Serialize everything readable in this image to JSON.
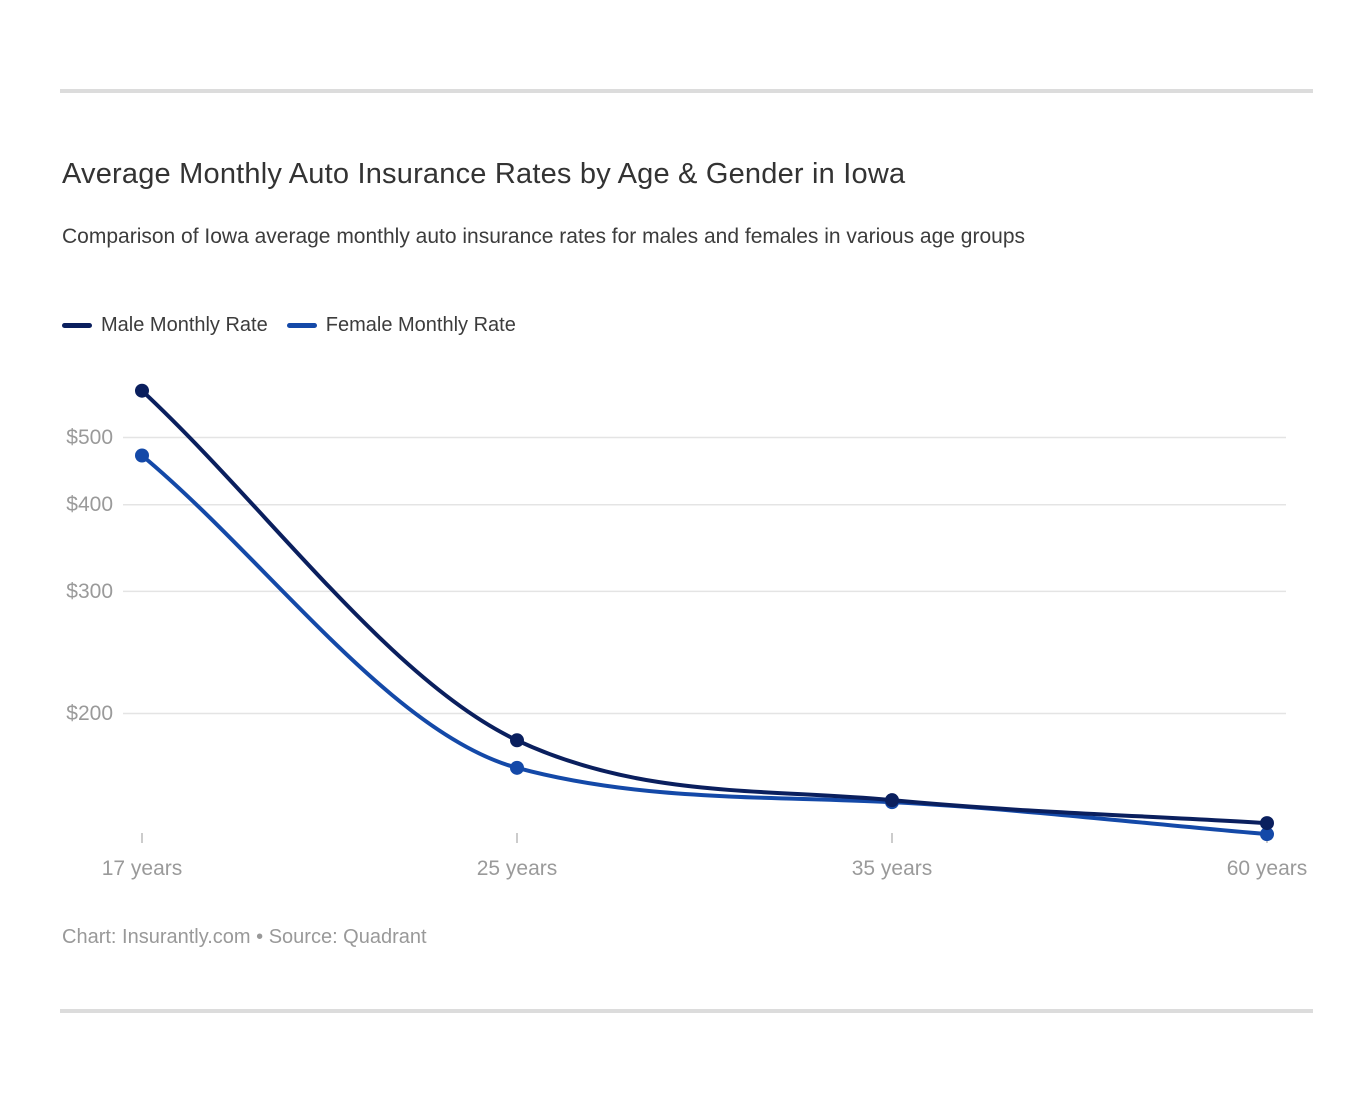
{
  "header": {
    "title": "Average Monthly Auto Insurance Rates by Age & Gender in Iowa",
    "subtitle": "Comparison of Iowa average monthly auto insurance rates for males and females in various age groups"
  },
  "footer": {
    "attribution": "Chart: Insurantly.com • Source: Quadrant"
  },
  "chart_data": {
    "type": "line",
    "title": "Average Monthly Auto Insurance Rates by Age & Gender in Iowa",
    "subtitle": "Comparison of Iowa average monthly auto insurance rates for males and females in various age groups",
    "categories": [
      "17 years",
      "25 years",
      "35 years",
      "60 years"
    ],
    "series": [
      {
        "name": "Male Monthly Rate",
        "color": "#0a1f5e",
        "values": [
          584,
          183,
          150,
          139
        ]
      },
      {
        "name": "Female Monthly Rate",
        "color": "#1449a8",
        "values": [
          471,
          167,
          149,
          134
        ]
      }
    ],
    "y_scale": "log",
    "y_ticks": [
      {
        "value": 500,
        "label": "$500"
      },
      {
        "value": 400,
        "label": "$400"
      },
      {
        "value": 300,
        "label": "$300"
      },
      {
        "value": 200,
        "label": "$200"
      }
    ],
    "xlabel": "",
    "ylabel": "",
    "legend_position": "top-left",
    "grid": "horizontal",
    "colors": {
      "gridline": "#e4e4e4",
      "tick": "#cccccc",
      "axis_label": "#9a9a9a"
    }
  }
}
